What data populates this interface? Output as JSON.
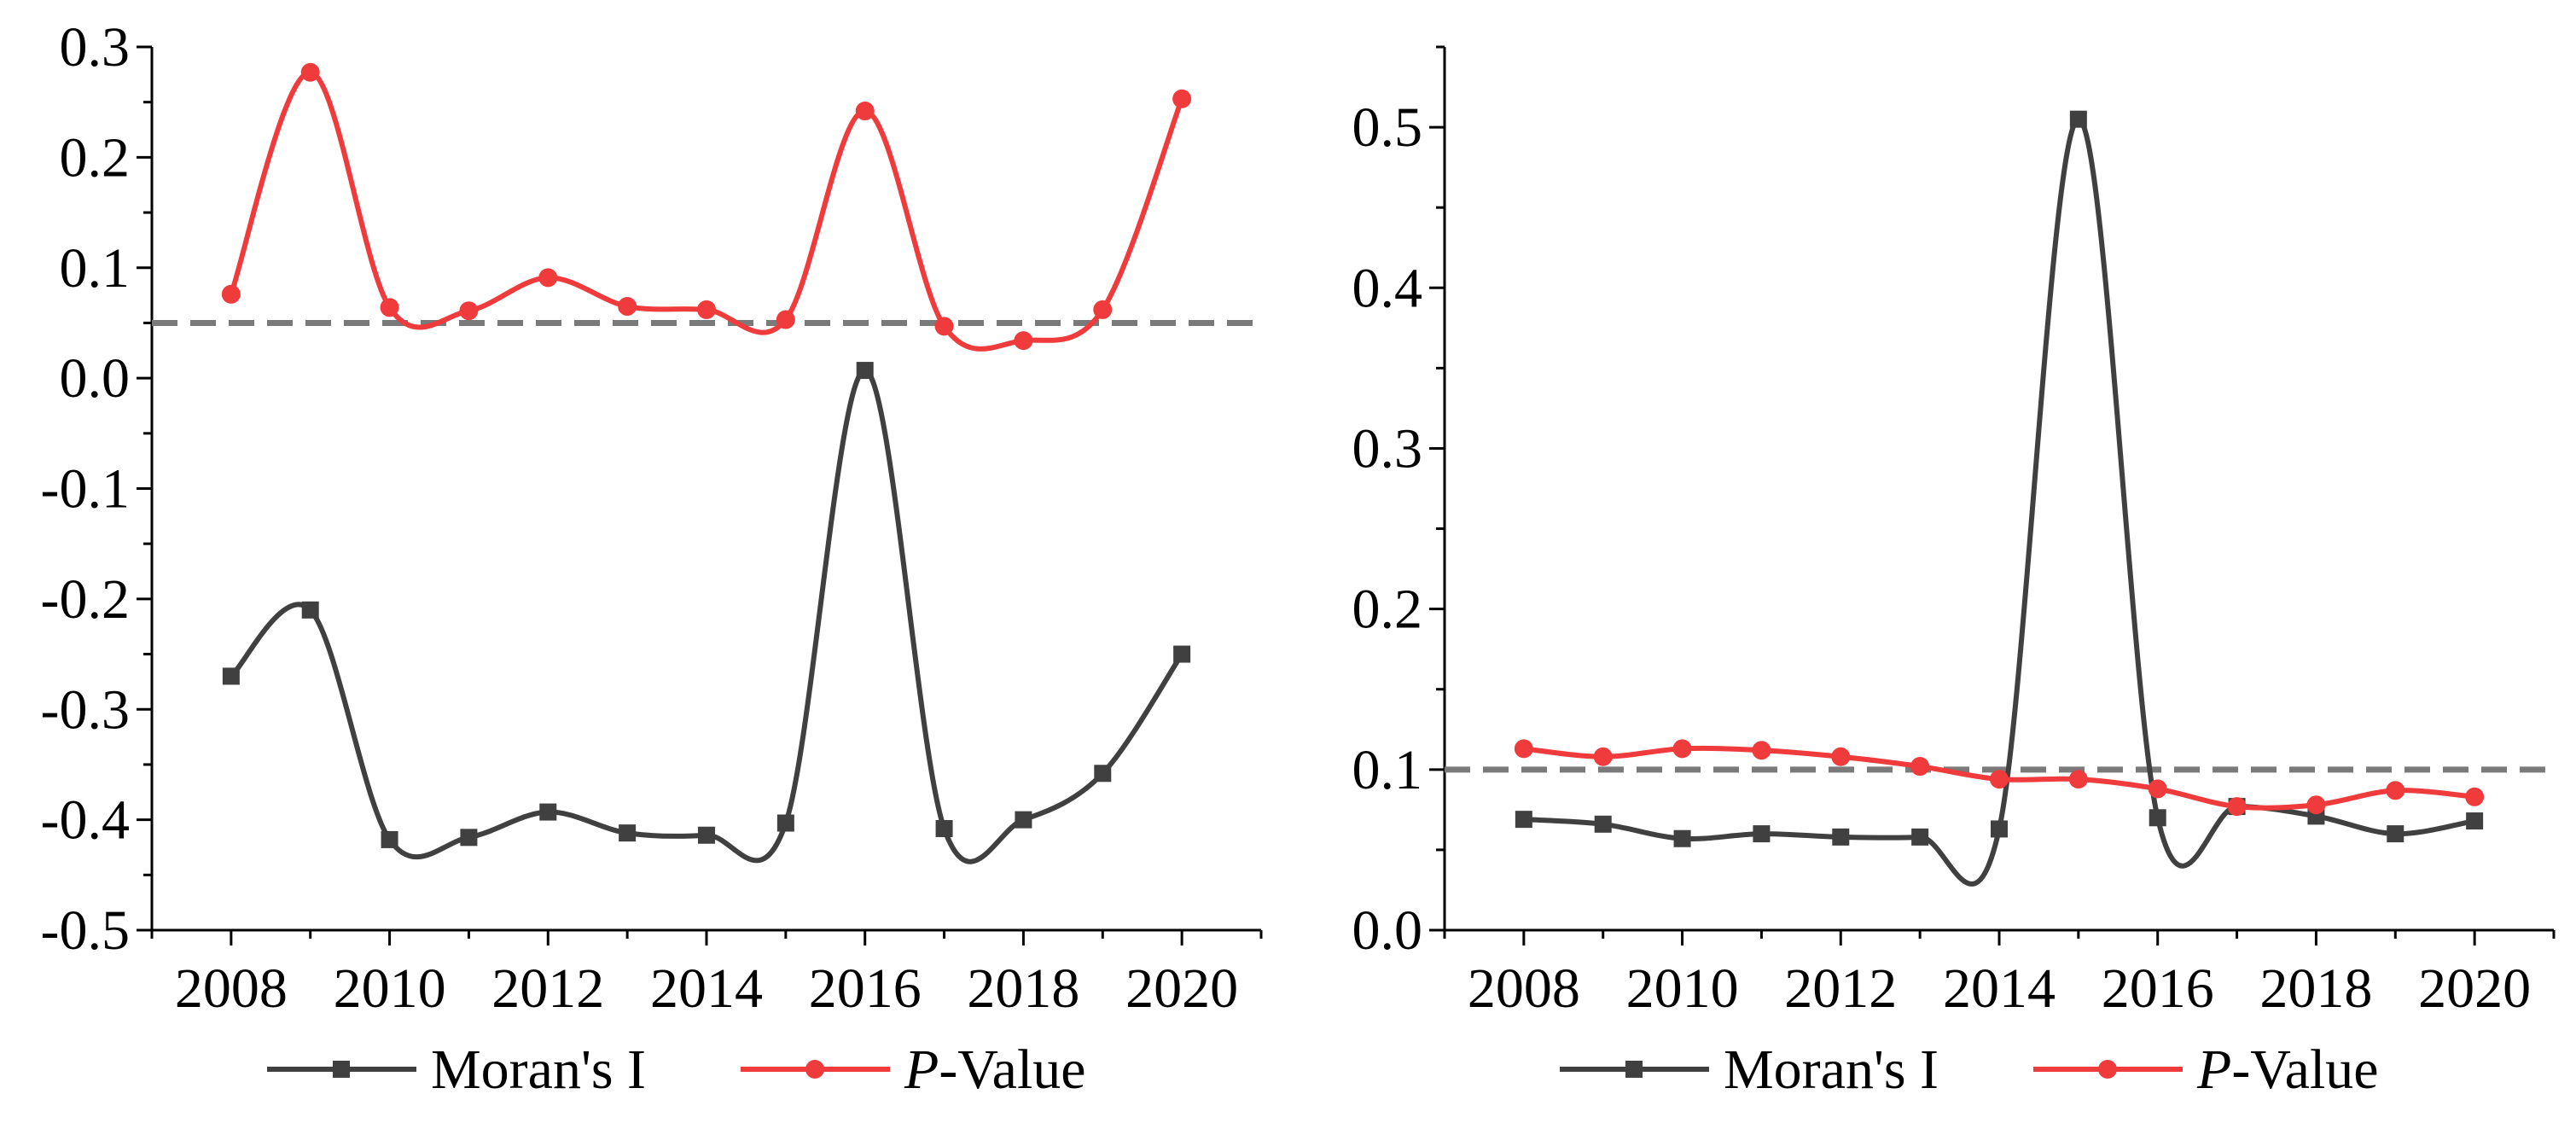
{
  "chart_data": [
    {
      "type": "line",
      "title": "",
      "xlabel": "",
      "ylabel": "",
      "x": [
        2008,
        2009,
        2010,
        2011,
        2012,
        2013,
        2014,
        2015,
        2016,
        2017,
        2018,
        2019,
        2020
      ],
      "xlim": [
        2007,
        2021
      ],
      "xticks": [
        "2008",
        "2010",
        "2012",
        "2014",
        "2016",
        "2018",
        "2020"
      ],
      "ylim": [
        -0.5,
        0.3
      ],
      "yticks": [
        "-0.5",
        "-0.4",
        "-0.3",
        "-0.2",
        "-0.1",
        "0.0",
        "0.1",
        "0.2",
        "0.3"
      ],
      "reference_line": 0.05,
      "series": [
        {
          "name": "Moran's I",
          "marker": "square",
          "color": "#404040",
          "values": [
            -0.27,
            -0.21,
            -0.418,
            -0.416,
            -0.393,
            -0.412,
            -0.414,
            -0.403,
            0.007,
            -0.408,
            -0.4,
            -0.358,
            -0.25
          ]
        },
        {
          "name": "P-Value",
          "marker": "circle",
          "color": "#ef3b3b",
          "values": [
            0.076,
            0.277,
            0.064,
            0.061,
            0.091,
            0.065,
            0.062,
            0.053,
            0.242,
            0.047,
            0.034,
            0.062,
            0.253
          ]
        }
      ],
      "legend": {
        "position": "bottom",
        "items": [
          {
            "prefix": "",
            "italic": "",
            "suffix": "Moran's I"
          },
          {
            "prefix": "",
            "italic": "P",
            "suffix": "-Value"
          }
        ]
      }
    },
    {
      "type": "line",
      "title": "",
      "xlabel": "",
      "ylabel": "",
      "x": [
        2008,
        2009,
        2010,
        2011,
        2012,
        2013,
        2014,
        2015,
        2016,
        2017,
        2018,
        2019,
        2020
      ],
      "xlim": [
        2007,
        2021
      ],
      "xticks": [
        "2008",
        "2010",
        "2012",
        "2014",
        "2016",
        "2018",
        "2020"
      ],
      "ylim": [
        0,
        0.55
      ],
      "yticks": [
        "0.0",
        "0.1",
        "0.2",
        "0.3",
        "0.4",
        "0.5"
      ],
      "reference_line": 0.1,
      "series": [
        {
          "name": "Moran's I",
          "marker": "square",
          "color": "#404040",
          "values": [
            0.069,
            0.066,
            0.057,
            0.06,
            0.058,
            0.058,
            0.063,
            0.505,
            0.07,
            0.077,
            0.071,
            0.06,
            0.068
          ]
        },
        {
          "name": "P-Value",
          "marker": "circle",
          "color": "#ef3b3b",
          "values": [
            0.113,
            0.108,
            0.113,
            0.112,
            0.108,
            0.102,
            0.094,
            0.094,
            0.088,
            0.077,
            0.078,
            0.087,
            0.083
          ]
        }
      ],
      "legend": {
        "position": "bottom",
        "items": [
          {
            "prefix": "",
            "italic": "",
            "suffix": "Moran's I"
          },
          {
            "prefix": "",
            "italic": "P",
            "suffix": "-Value"
          }
        ]
      }
    }
  ]
}
